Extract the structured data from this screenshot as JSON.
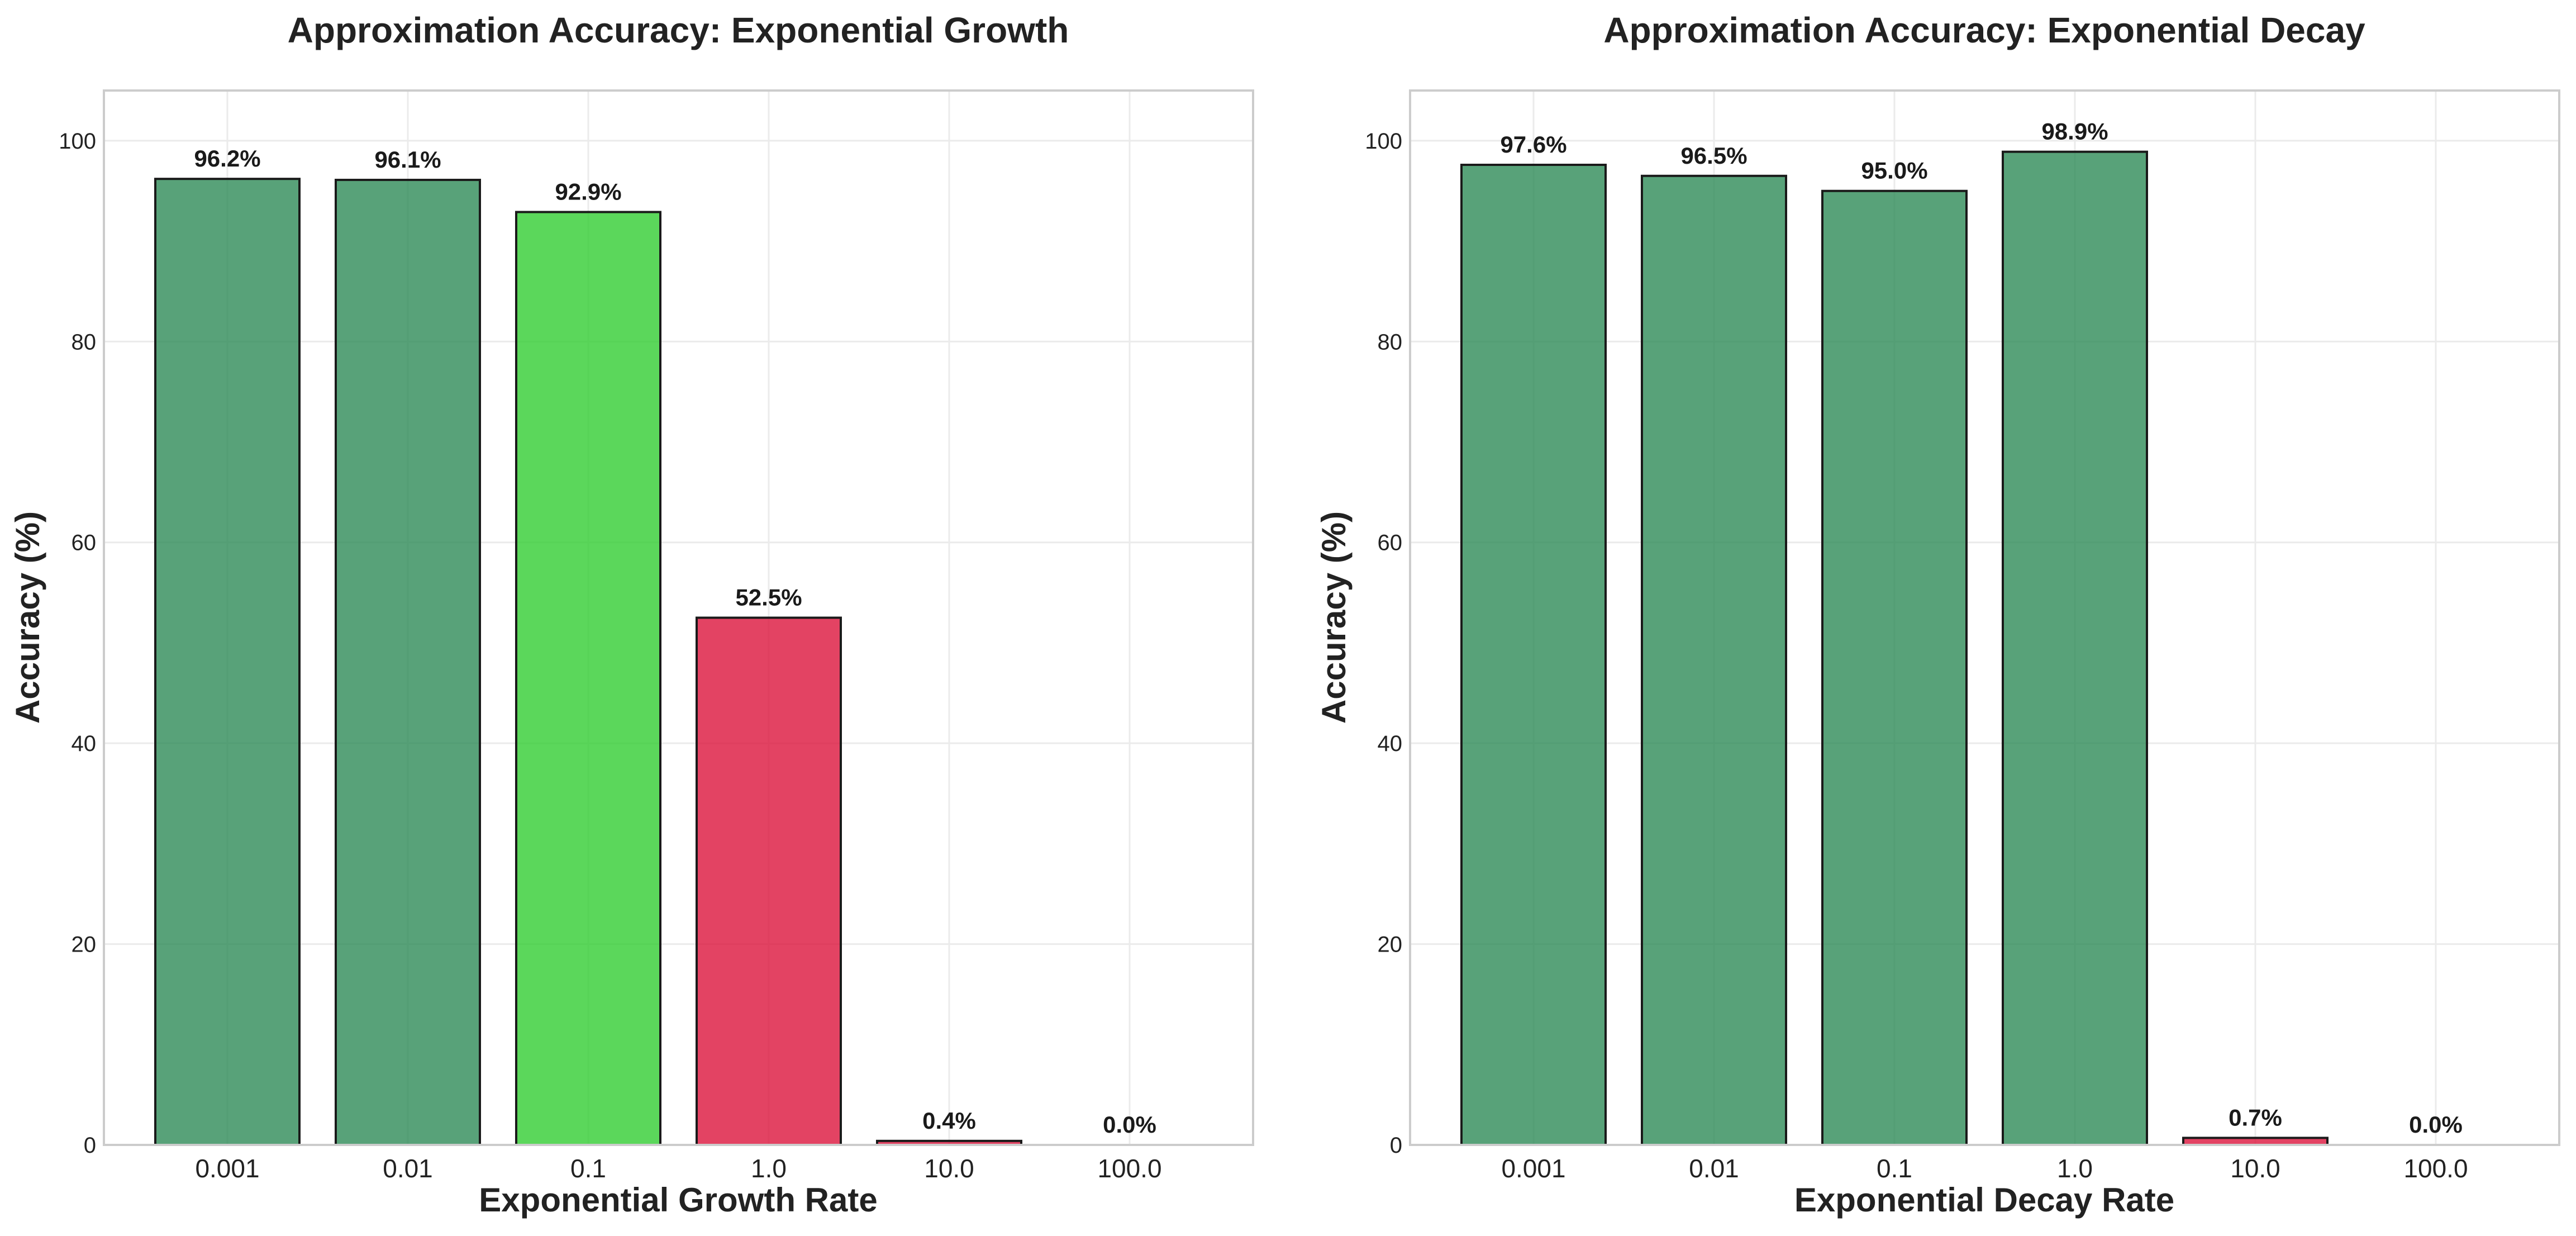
{
  "colors": {
    "high": "#2e8b57",
    "medium": "#32cd32",
    "low": "#dc143c"
  },
  "chart_data": [
    {
      "type": "bar",
      "title": "Approximation Accuracy: Exponential Growth",
      "xlabel": "Exponential Growth Rate",
      "ylabel": "Accuracy (%)",
      "ylim": [
        0,
        105
      ],
      "yticks": [
        "0",
        "20",
        "40",
        "60",
        "80",
        "100"
      ],
      "categories": [
        "0.001",
        "0.01",
        "0.1",
        "1.0",
        "10.0",
        "100.0"
      ],
      "values": [
        96.2,
        96.1,
        92.9,
        52.5,
        0.4,
        0.0
      ],
      "labels": [
        "96.2%",
        "96.1%",
        "92.9%",
        "52.5%",
        "0.4%",
        "0.0%"
      ],
      "bar_colors": [
        "#2e8b57",
        "#2e8b57",
        "#32cd32",
        "#dc143c",
        "#dc143c",
        "#dc143c"
      ],
      "grid": true
    },
    {
      "type": "bar",
      "title": "Approximation Accuracy: Exponential Decay",
      "xlabel": "Exponential Decay Rate",
      "ylabel": "Accuracy (%)",
      "ylim": [
        0,
        105
      ],
      "yticks": [
        "0",
        "20",
        "40",
        "60",
        "80",
        "100"
      ],
      "categories": [
        "0.001",
        "0.01",
        "0.1",
        "1.0",
        "10.0",
        "100.0"
      ],
      "values": [
        97.6,
        96.5,
        95.0,
        98.9,
        0.7,
        0.0
      ],
      "labels": [
        "97.6%",
        "96.5%",
        "95.0%",
        "98.9%",
        "0.7%",
        "0.0%"
      ],
      "bar_colors": [
        "#2e8b57",
        "#2e8b57",
        "#2e8b57",
        "#2e8b57",
        "#dc143c",
        "#dc143c"
      ],
      "grid": true
    }
  ]
}
